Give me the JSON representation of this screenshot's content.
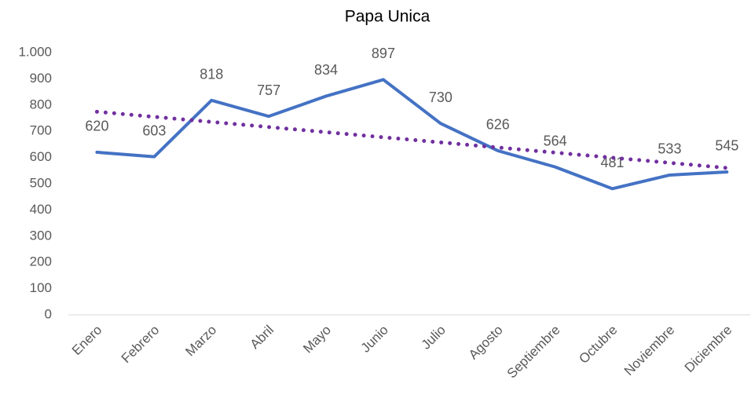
{
  "chart_data": {
    "type": "line",
    "title": "Papa Unica",
    "categories": [
      "Enero",
      "Febrero",
      "Marzo",
      "Abril",
      "Mayo",
      "Junio",
      "Julio",
      "Agosto",
      "Septiembre",
      "Octubre",
      "Noviembre",
      "Diciembre"
    ],
    "series": [
      {
        "color": "#4472c4",
        "values": [
          620,
          603,
          818,
          757,
          834,
          897,
          730,
          626,
          564,
          481,
          533,
          545
        ],
        "data_labels": true
      },
      {
        "color": "#7030a0",
        "style": "dotted",
        "values": [
          774.5,
          755.0,
          735.6,
          716.1,
          696.6,
          677.1,
          657.6,
          638.1,
          618.6,
          599.2,
          579.7,
          560.2
        ]
      }
    ],
    "ylim": [
      0,
      1000
    ],
    "yticks": [
      0,
      100,
      200,
      300,
      400,
      500,
      600,
      700,
      800,
      900,
      {
        "value": 1000,
        "label": "1.000"
      }
    ],
    "grid": false
  }
}
